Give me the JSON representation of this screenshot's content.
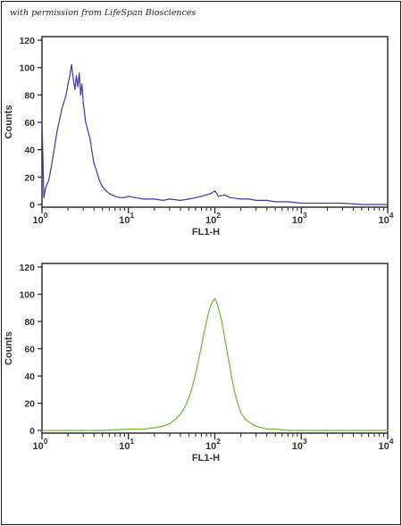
{
  "credit": "with permission from LifeSpan Biosciences",
  "colors": {
    "panel1": "#3a3aa8",
    "panel2": "#66bb33",
    "axis": "#222222"
  },
  "chart_data": [
    {
      "type": "line",
      "title": "",
      "xlabel": "FL1-H",
      "ylabel": "Counts",
      "xscale": "log",
      "xlim": [
        1,
        10000
      ],
      "ylim": [
        0,
        120
      ],
      "yticks": [
        0,
        20,
        40,
        60,
        80,
        100,
        120
      ],
      "xticks": [
        {
          "base": "10",
          "exp": "0"
        },
        {
          "base": "10",
          "exp": "1"
        },
        {
          "base": "10",
          "exp": "2"
        },
        {
          "base": "10",
          "exp": "3"
        },
        {
          "base": "10",
          "exp": "4"
        }
      ],
      "color": "#3a3aa8",
      "grid": false,
      "series": [
        {
          "x": [
            1.0,
            1.05,
            1.1,
            1.2,
            1.3,
            1.4,
            1.5,
            1.6,
            1.7,
            1.8,
            1.9,
            2.0,
            2.1,
            2.2,
            2.3,
            2.4,
            2.5,
            2.6,
            2.7,
            2.8,
            2.9,
            3.0,
            3.2,
            3.4,
            3.6,
            3.8,
            4.0,
            4.3,
            4.6,
            5.0,
            5.5,
            6,
            7,
            8,
            9,
            10,
            12,
            15,
            20,
            25,
            30,
            40,
            50,
            60,
            70,
            80,
            90,
            100,
            110,
            130,
            150,
            200,
            250,
            300,
            400,
            500,
            700,
            1000,
            1500,
            2000,
            3000,
            5000,
            7000,
            10000
          ],
          "y": [
            62,
            5,
            12,
            18,
            30,
            42,
            54,
            62,
            70,
            75,
            80,
            88,
            94,
            102,
            92,
            84,
            94,
            86,
            96,
            80,
            88,
            74,
            60,
            54,
            48,
            38,
            30,
            24,
            18,
            13,
            10,
            8,
            6,
            5,
            5,
            6,
            5,
            4,
            4,
            3,
            4,
            3,
            4,
            5,
            6,
            7,
            8,
            10,
            6,
            7,
            5,
            4,
            4,
            3,
            3,
            2,
            2,
            1,
            1,
            1,
            1,
            0,
            0,
            0
          ]
        }
      ]
    },
    {
      "type": "line",
      "title": "",
      "xlabel": "FL1-H",
      "ylabel": "Counts",
      "xscale": "log",
      "xlim": [
        1,
        10000
      ],
      "ylim": [
        0,
        120
      ],
      "yticks": [
        0,
        20,
        40,
        60,
        80,
        100,
        120
      ],
      "xticks": [
        {
          "base": "10",
          "exp": "0"
        },
        {
          "base": "10",
          "exp": "1"
        },
        {
          "base": "10",
          "exp": "2"
        },
        {
          "base": "10",
          "exp": "3"
        },
        {
          "base": "10",
          "exp": "4"
        }
      ],
      "color": "#66bb33",
      "grid": false,
      "series": [
        {
          "x": [
            1,
            3,
            5,
            10,
            15,
            20,
            25,
            30,
            35,
            40,
            45,
            50,
            55,
            60,
            65,
            70,
            75,
            80,
            85,
            90,
            95,
            100,
            105,
            110,
            115,
            120,
            130,
            140,
            150,
            160,
            170,
            180,
            200,
            220,
            250,
            300,
            350,
            400,
            500,
            700,
            1000,
            1500,
            2000,
            3000,
            5000,
            10000
          ],
          "y": [
            0,
            0,
            0,
            1,
            1,
            2,
            3,
            5,
            8,
            12,
            17,
            24,
            32,
            42,
            52,
            62,
            72,
            80,
            87,
            92,
            95,
            97,
            94,
            90,
            85,
            80,
            68,
            57,
            46,
            36,
            28,
            22,
            13,
            9,
            6,
            3,
            2,
            1,
            1,
            0,
            0,
            0,
            0,
            0,
            0,
            0
          ]
        }
      ]
    }
  ]
}
